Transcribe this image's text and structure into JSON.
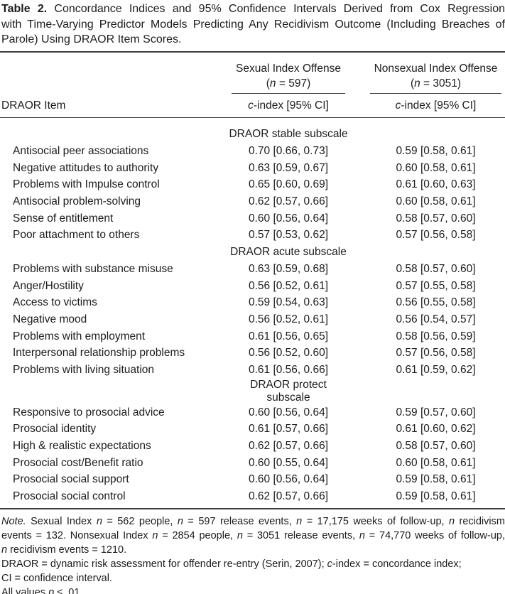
{
  "colors": {
    "text": "#1c1c1c",
    "rule": "#3f3f3f",
    "background": "#ffffff"
  },
  "title": {
    "lines": [
      [
        {
          "t": "Table 2.",
          "b": true
        },
        {
          "t": "  Concordance Indices and 95% Confidence Intervals Derived from Cox Regression"
        }
      ],
      [
        {
          "t": "with Time-Varying Predictor Models Predicting Any Recidivism Outcome (Including Breaches of"
        }
      ],
      [
        {
          "t": "Parole) Using DRAOR Item Scores."
        }
      ]
    ]
  },
  "table": {
    "item_header": "DRAOR Item",
    "col_groups": [
      {
        "title": "Sexual Index Offense",
        "n_line": [
          {
            "t": "("
          },
          {
            "t": "n",
            "i": true
          },
          {
            "t": " = 597)"
          }
        ],
        "cindex": [
          {
            "t": "c",
            "i": true
          },
          {
            "t": "-index [95% CI]"
          }
        ]
      },
      {
        "title": "Nonsexual Index Offense",
        "n_line": [
          {
            "t": "("
          },
          {
            "t": "n",
            "i": true
          },
          {
            "t": " = 3051)"
          }
        ],
        "cindex": [
          {
            "t": "c",
            "i": true
          },
          {
            "t": "-index [95% CI]"
          }
        ]
      }
    ],
    "rows": [
      {
        "type": "group",
        "label": "DRAOR stable subscale"
      },
      {
        "type": "item",
        "label": "Antisocial peer associations",
        "c1": "0.70 [0.66, 0.73]",
        "c2": "0.59 [0.58, 0.61]"
      },
      {
        "type": "item",
        "label": "Negative attitudes to authority",
        "c1": "0.63 [0.59, 0.67]",
        "c2": "0.60 [0.58, 0.61]"
      },
      {
        "type": "item",
        "label": "Problems with Impulse control",
        "c1": "0.65 [0.60, 0.69]",
        "c2": "0.61 [0.60, 0.63]"
      },
      {
        "type": "item",
        "label": "Antisocial problem-solving",
        "c1": "0.62 [0.57, 0.66]",
        "c2": "0.60 [0.58, 0.61]"
      },
      {
        "type": "item",
        "label": "Sense of entitlement",
        "c1": "0.60 [0.56, 0.64]",
        "c2": "0.58 [0.57, 0.60]"
      },
      {
        "type": "item",
        "label": "Poor attachment to others",
        "c1": "0.57 [0.53, 0.62]",
        "c2": "0.57 [0.56, 0.58]"
      },
      {
        "type": "group",
        "label": "DRAOR acute subscale"
      },
      {
        "type": "item",
        "label": "Problems with substance misuse",
        "c1": "0.63 [0.59, 0.68]",
        "c2": "0.58 [0.57, 0.60]"
      },
      {
        "type": "item",
        "label": "Anger/Hostility",
        "c1": "0.56 [0.52, 0.61]",
        "c2": "0.57 [0.55, 0.58]"
      },
      {
        "type": "item",
        "label": "Access to victims",
        "c1": "0.59 [0.54, 0.63]",
        "c2": "0.56 [0.55, 0.58]"
      },
      {
        "type": "item",
        "label": "Negative mood",
        "c1": "0.56 [0.52, 0.61]",
        "c2": "0.56 [0.54, 0.57]"
      },
      {
        "type": "item",
        "label": "Problems with employment",
        "c1": "0.61 [0.56, 0.65]",
        "c2": "0.58 [0.56, 0.59]"
      },
      {
        "type": "item",
        "label": "Interpersonal relationship problems",
        "c1": "0.56 [0.52, 0.60]",
        "c2": "0.57 [0.56, 0.58]"
      },
      {
        "type": "item",
        "label": "Problems with living situation",
        "c1": "0.61 [0.56, 0.66]",
        "c2": "0.61 [0.59, 0.62]"
      },
      {
        "type": "group",
        "label": "DRAOR protect subscale"
      },
      {
        "type": "item",
        "label": "Responsive to prosocial advice",
        "c1": "0.60 [0.56, 0.64]",
        "c2": "0.59 [0.57, 0.60]"
      },
      {
        "type": "item",
        "label": "Prosocial identity",
        "c1": "0.61 [0.57, 0.66]",
        "c2": "0.61 [0.60, 0.62]"
      },
      {
        "type": "item",
        "label": "High & realistic expectations",
        "c1": "0.62 [0.57, 0.66]",
        "c2": "0.58 [0.57, 0.60]"
      },
      {
        "type": "item",
        "label": "Prosocial cost/Benefit ratio",
        "c1": "0.60 [0.55, 0.64]",
        "c2": "0.60 [0.58, 0.61]"
      },
      {
        "type": "item",
        "label": "Prosocial social support",
        "c1": "0.60 [0.56, 0.64]",
        "c2": "0.59 [0.58, 0.61]"
      },
      {
        "type": "item",
        "label": "Prosocial social control",
        "c1": "0.62 [0.57, 0.66]",
        "c2": "0.59 [0.58, 0.61]"
      }
    ]
  },
  "notes": {
    "lines": [
      [
        {
          "t": "Note.",
          "i": true
        },
        {
          "t": " Sexual Index "
        },
        {
          "t": "n",
          "i": true
        },
        {
          "t": " = 562 people, "
        },
        {
          "t": "n",
          "i": true
        },
        {
          "t": " = 597 release events, "
        },
        {
          "t": "n",
          "i": true
        },
        {
          "t": " = 17,175 weeks of follow-up, "
        },
        {
          "t": "n",
          "i": true
        },
        {
          "t": " recidivism"
        }
      ],
      [
        {
          "t": "events = 132. Nonsexual Index "
        },
        {
          "t": "n",
          "i": true
        },
        {
          "t": " = 2854 people, "
        },
        {
          "t": "n",
          "i": true
        },
        {
          "t": " = 3051 release events, "
        },
        {
          "t": "n",
          "i": true
        },
        {
          "t": " = 74,770 weeks of follow-up,"
        }
      ],
      [
        {
          "t": "n",
          "i": true
        },
        {
          "t": " recidivism events = 1210."
        }
      ],
      [
        {
          "t": "DRAOR = dynamic risk assessment for offender re-entry (Serin, 2007); "
        },
        {
          "t": "c",
          "i": true
        },
        {
          "t": "-index = concordance index;"
        }
      ],
      [
        {
          "t": "CI = confidence interval."
        }
      ],
      [
        {
          "t": "All values "
        },
        {
          "t": "p",
          "i": true
        },
        {
          "t": " ≤ .01."
        }
      ]
    ]
  }
}
